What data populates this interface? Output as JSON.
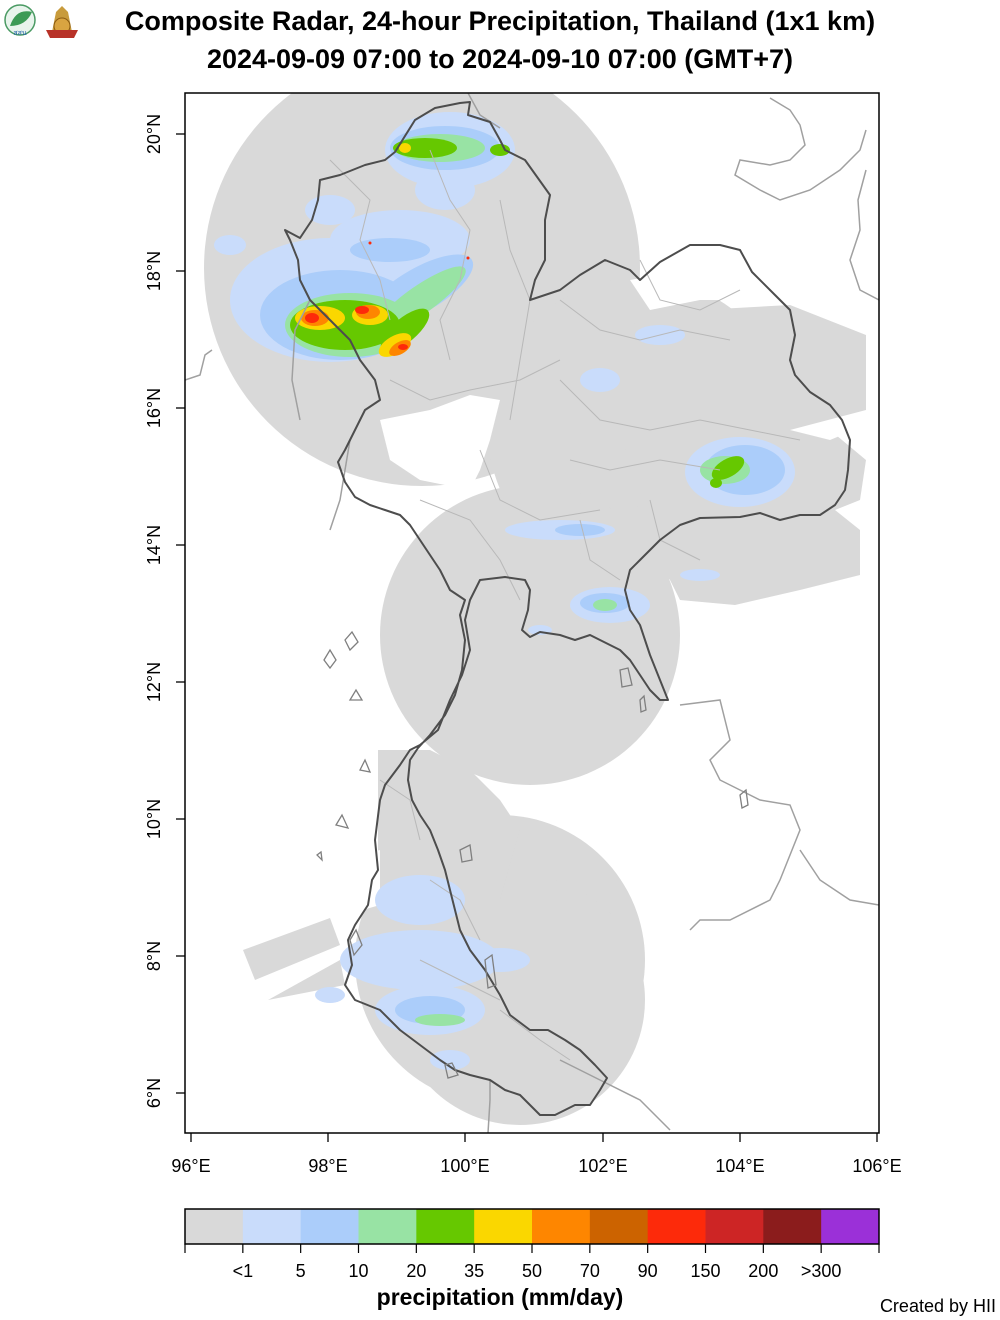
{
  "title": {
    "line1": "Composite Radar, 24-hour Precipitation, Thailand (1x1 km)",
    "line2": "2024-09-09 07:00 to 2024-09-10 07:00 (GMT+7)"
  },
  "axes": {
    "x_ticks": [
      "96°E",
      "98°E",
      "100°E",
      "102°E",
      "104°E",
      "106°E"
    ],
    "y_ticks": [
      "6°N",
      "8°N",
      "10°N",
      "12°N",
      "14°N",
      "16°N",
      "18°N",
      "20°N"
    ],
    "lon_range": [
      96,
      106
    ],
    "lat_range": [
      5.5,
      20.6
    ]
  },
  "legend": {
    "title": "precipitation (mm/day)",
    "labels": [
      "<1",
      "5",
      "10",
      "20",
      "35",
      "50",
      "70",
      "90",
      "150",
      "200",
      ">300"
    ],
    "colors": [
      "#d9d9d9",
      "#c9dcfb",
      "#abcdfa",
      "#98e3a4",
      "#66c800",
      "#fad700",
      "#fe8600",
      "#cc6300",
      "#fd2a0a",
      "#cd2525",
      "#8b1c1c",
      "#9b30d8"
    ]
  },
  "logo_text": "สสน",
  "credit": "Created by HII"
}
